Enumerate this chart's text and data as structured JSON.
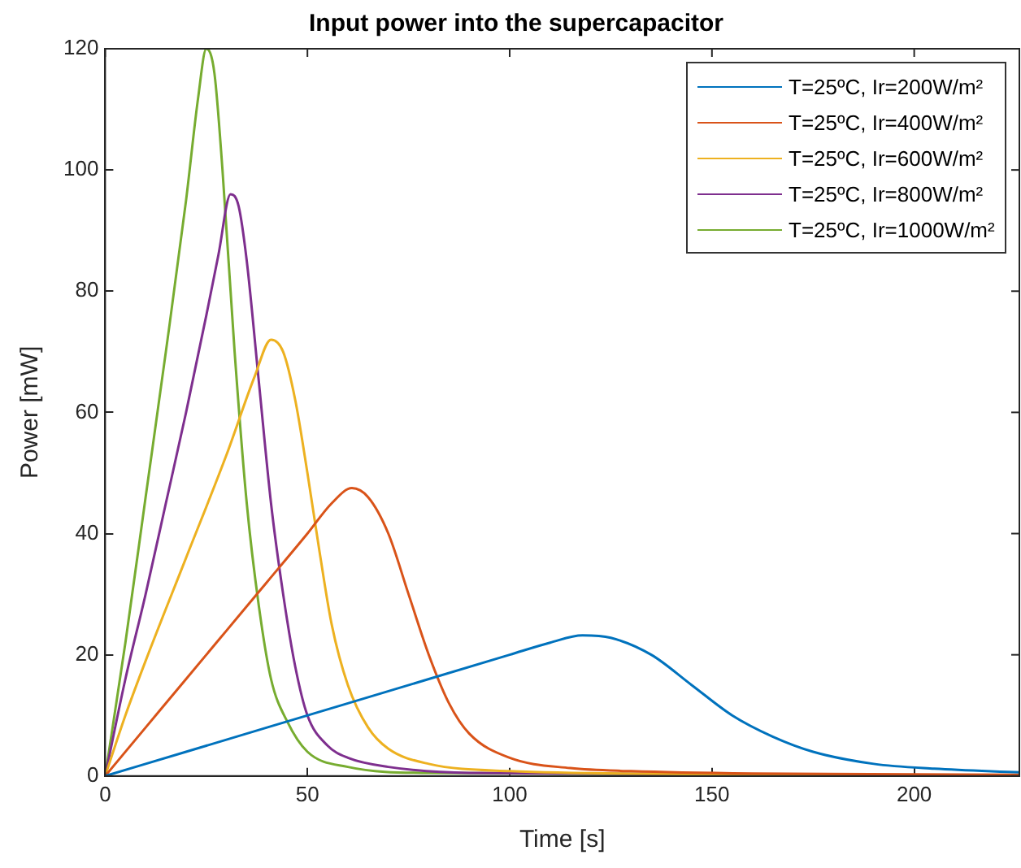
{
  "chart_data": {
    "type": "line",
    "title": "Input power into the supercapacitor",
    "xlabel": "Time [s]",
    "ylabel": "Power [mW]",
    "xlim": [
      0,
      226
    ],
    "xticks": [
      0,
      50,
      100,
      150,
      200
    ],
    "ylim": [
      0,
      120
    ],
    "yticks": [
      0,
      20,
      40,
      60,
      80,
      100,
      120
    ],
    "grid": false,
    "legend": "top right",
    "marker": "none",
    "line_style": "solid",
    "series": [
      {
        "name": "T=25ºC, Ir=200W/m²",
        "color": "#0072bd",
        "x": [
          0,
          20,
          40,
          60,
          80,
          100,
          110,
          118,
          125,
          135,
          145,
          155,
          165,
          175,
          190,
          205,
          226
        ],
        "values": [
          0,
          4,
          8,
          12,
          16,
          20,
          22,
          23.2,
          22.8,
          20,
          15,
          10,
          6.5,
          4,
          2,
          1.2,
          0.6
        ]
      },
      {
        "name": "T=25ºC, Ir=400W/m²",
        "color": "#d95319",
        "x": [
          0,
          10,
          20,
          30,
          40,
          50,
          56,
          61,
          65,
          70,
          75,
          80,
          85,
          90,
          100,
          115,
          130,
          160,
          226
        ],
        "values": [
          0,
          8,
          16,
          24,
          32,
          40,
          45,
          47.5,
          46,
          40,
          30,
          20,
          12,
          7,
          3,
          1.3,
          0.8,
          0.4,
          0.2
        ]
      },
      {
        "name": "T=25ºC, Ir=600W/m²",
        "color": "#edb120",
        "x": [
          0,
          5,
          10,
          20,
          30,
          37,
          41,
          44,
          47,
          50,
          53,
          56,
          60,
          65,
          70,
          80,
          100,
          150,
          226
        ],
        "values": [
          0,
          10,
          19,
          36,
          53,
          66,
          72,
          70,
          62,
          50,
          37,
          25,
          15,
          8,
          4.5,
          2,
          0.8,
          0.3,
          0.1
        ]
      },
      {
        "name": "T=25ºC, Ir=800W/m²",
        "color": "#7e2f8e",
        "x": [
          0,
          5,
          10,
          15,
          20,
          25,
          28,
          31,
          33,
          35,
          38,
          41,
          44,
          47,
          50,
          55,
          60,
          70,
          90,
          226
        ],
        "values": [
          0,
          16,
          30,
          45,
          60,
          76,
          86,
          96,
          94,
          85,
          65,
          45,
          30,
          18,
          10,
          5,
          3,
          1.5,
          0.5,
          0.1
        ]
      },
      {
        "name": "T=25ºC, Ir=1000W/m²",
        "color": "#77ac30",
        "x": [
          0,
          5,
          10,
          15,
          20,
          23,
          25,
          27,
          29,
          32,
          35,
          38,
          41,
          45,
          50,
          60,
          80,
          226
        ],
        "values": [
          0,
          22,
          46,
          70,
          95,
          112,
          120,
          116,
          100,
          70,
          45,
          28,
          16,
          9,
          4,
          1.5,
          0.5,
          0.1
        ]
      }
    ]
  }
}
